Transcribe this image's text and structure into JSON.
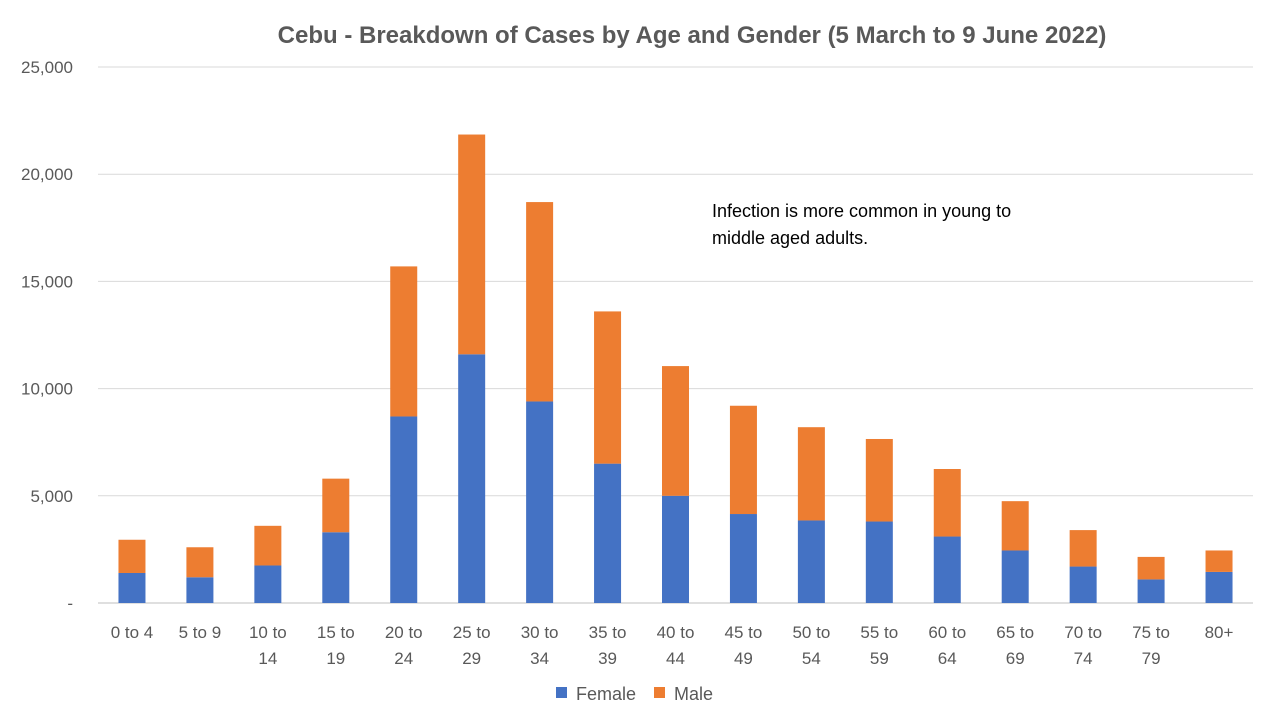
{
  "chart_data": {
    "type": "bar",
    "stacked": true,
    "title": "Cebu - Breakdown of Cases by Age and Gender (5 March to 9 June 2022)",
    "xlabel": "",
    "ylabel": "",
    "ylim": [
      0,
      25000
    ],
    "y_ticks": [
      0,
      5000,
      10000,
      15000,
      20000,
      25000
    ],
    "y_tick_labels": [
      "-",
      "5,000",
      "10,000",
      "15,000",
      "20,000",
      "25,000"
    ],
    "grid": true,
    "legend_position": "bottom",
    "categories": [
      [
        "0 to 4"
      ],
      [
        "5 to 9"
      ],
      [
        "10 to",
        "14"
      ],
      [
        "15 to",
        "19"
      ],
      [
        "20 to",
        "24"
      ],
      [
        "25 to",
        "29"
      ],
      [
        "30 to",
        "34"
      ],
      [
        "35 to",
        "39"
      ],
      [
        "40 to",
        "44"
      ],
      [
        "45 to",
        "49"
      ],
      [
        "50 to",
        "54"
      ],
      [
        "55 to",
        "59"
      ],
      [
        "60 to",
        "64"
      ],
      [
        "65 to",
        "69"
      ],
      [
        "70 to",
        "74"
      ],
      [
        "75 to",
        "79"
      ],
      [
        "80+"
      ]
    ],
    "series": [
      {
        "name": "Female",
        "color": "#4472C4",
        "values": [
          1400,
          1200,
          1750,
          3300,
          8700,
          11600,
          9400,
          6500,
          5000,
          4150,
          3850,
          3800,
          3100,
          2450,
          1700,
          1100,
          1450
        ]
      },
      {
        "name": "Male",
        "color": "#ED7D31",
        "values": [
          1550,
          1400,
          1850,
          2500,
          7000,
          10250,
          9300,
          7100,
          6050,
          5050,
          4350,
          3850,
          3150,
          2300,
          1700,
          1050,
          1000
        ]
      }
    ],
    "annotation": {
      "lines": [
        "Infection is more common in young to",
        "middle aged adults."
      ]
    }
  }
}
